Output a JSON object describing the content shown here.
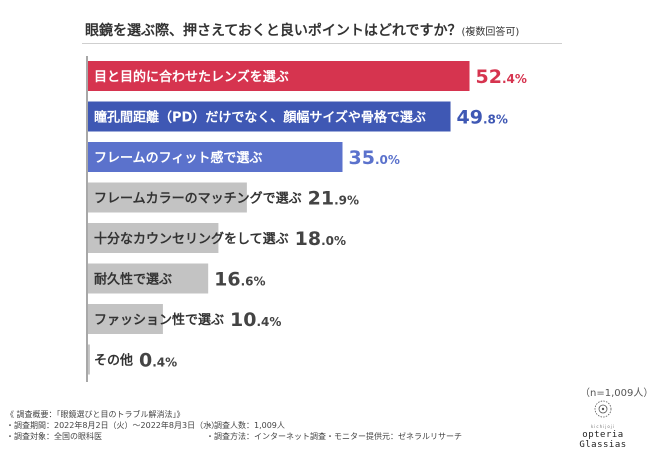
{
  "title": {
    "main": "眼鏡を選ぶ際、押さえておくと良いポイントはどれですか？",
    "sub": "(複数回答可)"
  },
  "sample_size": "（n=1,009人）",
  "survey": {
    "heading": "《 調査概要：「眼鏡選びと目のトラブル解消法」》",
    "period": "・調査期間：2022年8月2日（火）～2022年8月3日（水）",
    "respondents": "・調査人数：1,009人",
    "target": "・調査対象：全国の眼科医",
    "method": "・調査方法：インターネット調査",
    "provider": "・モニター提供元：ゼネラルリサーチ"
  },
  "logo": {
    "small": "kichijoji",
    "brand": "opteria Glassias"
  },
  "colors": {
    "first": "#d6344f",
    "second": "#3f58b4",
    "third": "#5b72cc",
    "other": "#c3c3c3",
    "first_text": "#d6344f",
    "second_text": "#3f58b4",
    "third_text": "#5b72cc",
    "other_text": "#444444"
  },
  "chart_data": {
    "type": "bar",
    "orientation": "horizontal",
    "title": "眼鏡を選ぶ際、押さえておくと良いポイントはどれですか？(複数回答可)",
    "unit": "%",
    "xlim": [
      0,
      100
    ],
    "categories": [
      "目と目的に合わせたレンズを選ぶ",
      "瞳孔間距離（PD）だけでなく、顔幅サイズや骨格で選ぶ",
      "フレームのフィット感で選ぶ",
      "フレームカラーのマッチングで選ぶ",
      "十分なカウンセリングをして選ぶ",
      "耐久性で選ぶ",
      "ファッション性で選ぶ",
      "その他"
    ],
    "values": [
      52.4,
      49.8,
      35.0,
      21.9,
      18.0,
      16.6,
      10.4,
      0.4
    ],
    "value_labels": [
      [
        "52",
        ".4%"
      ],
      [
        "49",
        ".8%"
      ],
      [
        "35",
        ".0%"
      ],
      [
        "21",
        ".9%"
      ],
      [
        "18",
        ".0%"
      ],
      [
        "16",
        ".6%"
      ],
      [
        "10",
        ".4%"
      ],
      [
        "0",
        ".4%"
      ]
    ]
  }
}
